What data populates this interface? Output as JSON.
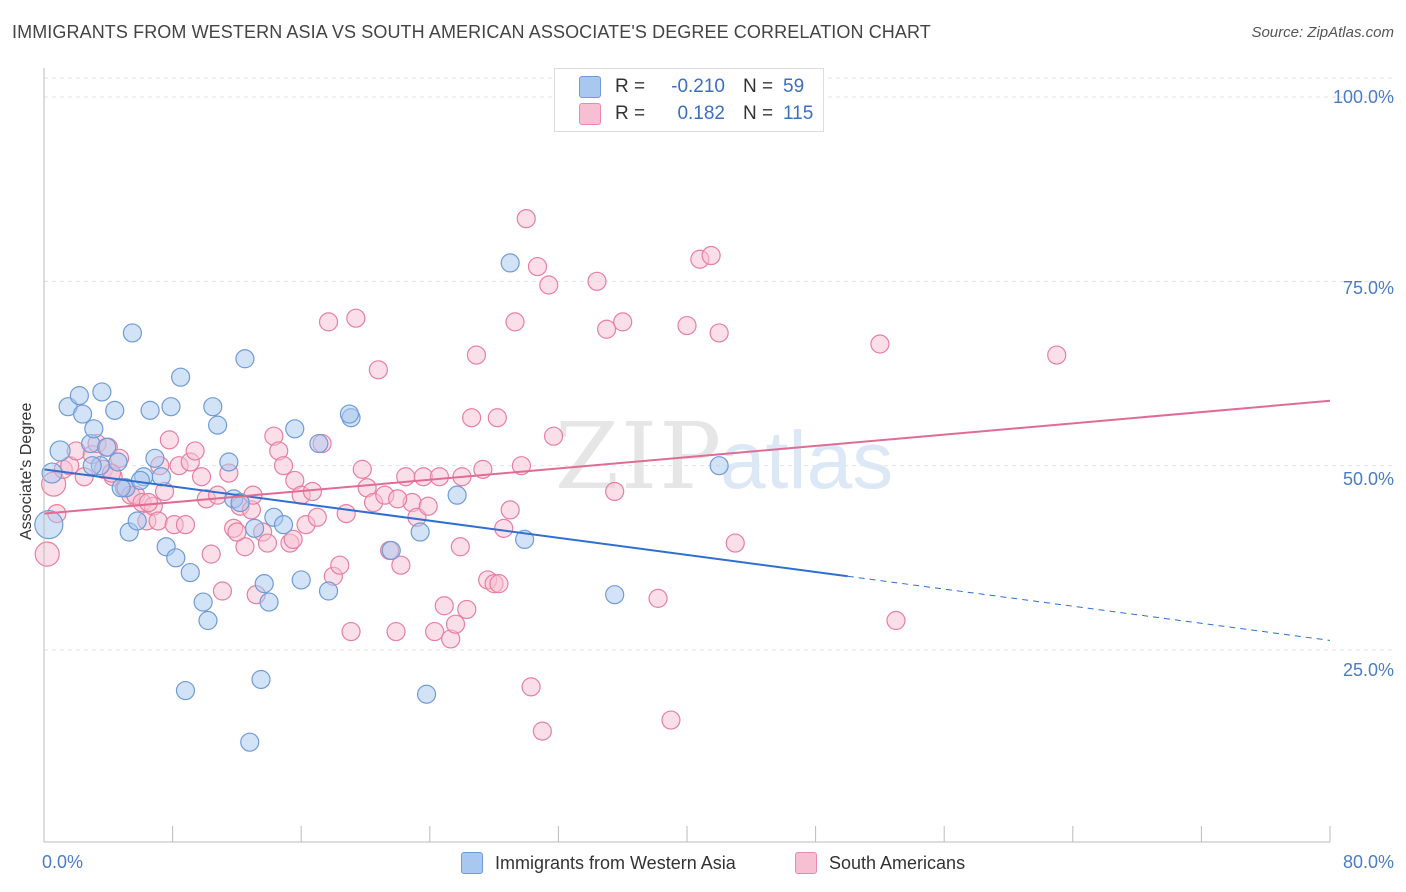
{
  "title": "IMMIGRANTS FROM WESTERN ASIA VS SOUTH AMERICAN ASSOCIATE'S DEGREE CORRELATION CHART",
  "source": "Source: ZipAtlas.com",
  "watermark": "ZIPatlas",
  "legend": {
    "rows": [
      {
        "r_label": "R =",
        "r_value": "-0.210",
        "n_label": "N =",
        "n_value": "59",
        "color": "#a8c8f0",
        "border": "#6f9bd8"
      },
      {
        "r_label": "R =",
        "r_value": "0.182",
        "n_label": "N =",
        "n_value": "115",
        "color": "#f7c0d2",
        "border": "#e88aa8"
      }
    ]
  },
  "bottom_legend": {
    "series_a": "Immigrants from Western Asia",
    "series_b": "South Americans"
  },
  "chart_data": {
    "type": "scatter",
    "title": "IMMIGRANTS FROM WESTERN ASIA VS SOUTH AMERICAN ASSOCIATE'S DEGREE CORRELATION CHART",
    "xlabel": "",
    "ylabel": "Associate's Degree",
    "xlim": [
      0,
      80
    ],
    "ylim": [
      0,
      105
    ],
    "x_tick_labels": [
      "0.0%",
      "80.0%"
    ],
    "y_ticks": [
      25,
      50,
      75,
      100
    ],
    "y_tick_labels": [
      "25.0%",
      "50.0%",
      "75.0%",
      "100.0%"
    ],
    "grid": true,
    "series": [
      {
        "name": "Immigrants from Western Asia",
        "color": "#6f9bd8",
        "fill": "#a8c8f0",
        "trend": {
          "x0": 0,
          "y0": 49.5,
          "x1": 50,
          "y1": 35.0,
          "dash_to_x": 80,
          "dash_to_y": 26.3
        },
        "points": [
          [
            0.3,
            42,
            14
          ],
          [
            0.5,
            49,
            10
          ],
          [
            1.0,
            52,
            10
          ],
          [
            1.5,
            58,
            9
          ],
          [
            2.2,
            59.5,
            9
          ],
          [
            2.4,
            57,
            9
          ],
          [
            2.9,
            53,
            9
          ],
          [
            3.1,
            55,
            9
          ],
          [
            3.5,
            50,
            9
          ],
          [
            3.6,
            60,
            9
          ],
          [
            3.9,
            52.5,
            9
          ],
          [
            4.4,
            57.5,
            9
          ],
          [
            4.6,
            50.5,
            9
          ],
          [
            5.1,
            47,
            9
          ],
          [
            5.3,
            41,
            9
          ],
          [
            5.5,
            68,
            9
          ],
          [
            5.8,
            42.5,
            9
          ],
          [
            6.2,
            48.5,
            9
          ],
          [
            6.6,
            57.5,
            9
          ],
          [
            6.9,
            51,
            9
          ],
          [
            7.3,
            48.5,
            9
          ],
          [
            7.6,
            39,
            9
          ],
          [
            7.9,
            58,
            9
          ],
          [
            8.2,
            37.5,
            9
          ],
          [
            8.5,
            62,
            9
          ],
          [
            8.8,
            19.5,
            9
          ],
          [
            9.1,
            35.5,
            9
          ],
          [
            9.9,
            31.5,
            9
          ],
          [
            10.2,
            29,
            9
          ],
          [
            10.5,
            58,
            9
          ],
          [
            10.8,
            55.5,
            9
          ],
          [
            11.5,
            50.5,
            9
          ],
          [
            11.8,
            45.5,
            9
          ],
          [
            12.2,
            45,
            9
          ],
          [
            12.5,
            64.5,
            9
          ],
          [
            12.8,
            12.5,
            9
          ],
          [
            13.1,
            41.5,
            9
          ],
          [
            13.5,
            21,
            9
          ],
          [
            13.7,
            34,
            9
          ],
          [
            14.0,
            31.5,
            9
          ],
          [
            14.3,
            43,
            9
          ],
          [
            14.9,
            42,
            9
          ],
          [
            15.6,
            55,
            9
          ],
          [
            16.0,
            34.5,
            9
          ],
          [
            17.1,
            53,
            9
          ],
          [
            17.7,
            33,
            9
          ],
          [
            19.1,
            56.5,
            9
          ],
          [
            21.6,
            38.5,
            9
          ],
          [
            23.4,
            41,
            9
          ],
          [
            23.8,
            19,
            9
          ],
          [
            25.7,
            46,
            9
          ],
          [
            29.0,
            77.5,
            9
          ],
          [
            29.9,
            40,
            9
          ],
          [
            35.5,
            32.5,
            9
          ],
          [
            42.0,
            50,
            9
          ],
          [
            19.0,
            57,
            9
          ],
          [
            6.0,
            48,
            9
          ],
          [
            4.8,
            47,
            9
          ],
          [
            3.0,
            50,
            9
          ]
        ]
      },
      {
        "name": "South Americans",
        "color": "#e87fa0",
        "fill": "#f7c0d2",
        "trend": {
          "x0": 0,
          "y0": 43.5,
          "x1": 80,
          "y1": 58.8
        },
        "points": [
          [
            0.2,
            38,
            12
          ],
          [
            0.6,
            47.5,
            12
          ],
          [
            0.8,
            43.5,
            9
          ],
          [
            1.2,
            49.5,
            9
          ],
          [
            1.6,
            50,
            9
          ],
          [
            2.0,
            52,
            9
          ],
          [
            2.5,
            48.5,
            9
          ],
          [
            3.0,
            51.5,
            9
          ],
          [
            3.3,
            53,
            9
          ],
          [
            3.7,
            49.5,
            9
          ],
          [
            4.0,
            52.5,
            9
          ],
          [
            4.3,
            48.5,
            9
          ],
          [
            4.7,
            51,
            9
          ],
          [
            5.0,
            47,
            9
          ],
          [
            5.4,
            46,
            9
          ],
          [
            5.7,
            46,
            9
          ],
          [
            6.1,
            45,
            9
          ],
          [
            6.4,
            42.5,
            9
          ],
          [
            6.8,
            44.5,
            9
          ],
          [
            7.1,
            42.5,
            9
          ],
          [
            7.5,
            46.5,
            9
          ],
          [
            7.8,
            53.5,
            9
          ],
          [
            8.1,
            42,
            9
          ],
          [
            8.4,
            50,
            9
          ],
          [
            8.8,
            42,
            9
          ],
          [
            9.1,
            50.5,
            9
          ],
          [
            9.4,
            52,
            9
          ],
          [
            9.8,
            48.5,
            9
          ],
          [
            10.1,
            45.5,
            9
          ],
          [
            10.4,
            38,
            9
          ],
          [
            10.8,
            46,
            9
          ],
          [
            11.1,
            33,
            9
          ],
          [
            11.5,
            49,
            9
          ],
          [
            11.8,
            41.5,
            9
          ],
          [
            12.2,
            44.5,
            9
          ],
          [
            12.5,
            39,
            9
          ],
          [
            12.9,
            44,
            9
          ],
          [
            13.2,
            32.5,
            9
          ],
          [
            13.6,
            41,
            9
          ],
          [
            13.9,
            39.5,
            9
          ],
          [
            14.3,
            54,
            9
          ],
          [
            14.6,
            52,
            9
          ],
          [
            14.9,
            50,
            9
          ],
          [
            15.3,
            39.5,
            9
          ],
          [
            15.6,
            48,
            9
          ],
          [
            16.0,
            46,
            9
          ],
          [
            16.3,
            42,
            9
          ],
          [
            16.7,
            46.5,
            9
          ],
          [
            17.0,
            43,
            9
          ],
          [
            17.3,
            53,
            9
          ],
          [
            17.7,
            69.5,
            9
          ],
          [
            18.0,
            35,
            9
          ],
          [
            18.4,
            36.5,
            9
          ],
          [
            18.8,
            43.5,
            9
          ],
          [
            19.1,
            27.5,
            9
          ],
          [
            19.4,
            70,
            9
          ],
          [
            19.8,
            49.5,
            9
          ],
          [
            20.1,
            47,
            9
          ],
          [
            20.5,
            45,
            9
          ],
          [
            20.8,
            63,
            9
          ],
          [
            21.2,
            46,
            9
          ],
          [
            21.5,
            38.5,
            9
          ],
          [
            21.9,
            27.5,
            9
          ],
          [
            22.2,
            36.5,
            9
          ],
          [
            22.5,
            48.5,
            9
          ],
          [
            22.9,
            45,
            9
          ],
          [
            23.2,
            43,
            9
          ],
          [
            23.6,
            48.5,
            9
          ],
          [
            23.9,
            44.5,
            9
          ],
          [
            24.3,
            27.5,
            9
          ],
          [
            24.6,
            48.5,
            9
          ],
          [
            24.9,
            31,
            9
          ],
          [
            25.3,
            26.5,
            9
          ],
          [
            25.6,
            28.5,
            9
          ],
          [
            25.9,
            39,
            9
          ],
          [
            26.3,
            30.5,
            9
          ],
          [
            26.6,
            56.5,
            9
          ],
          [
            26.9,
            65,
            9
          ],
          [
            27.3,
            49.5,
            9
          ],
          [
            27.6,
            34.5,
            9
          ],
          [
            28.0,
            34,
            9
          ],
          [
            28.3,
            34,
            9
          ],
          [
            28.6,
            41.5,
            9
          ],
          [
            29.0,
            44,
            9
          ],
          [
            29.3,
            69.5,
            9
          ],
          [
            29.7,
            50,
            9
          ],
          [
            30.0,
            83.5,
            9
          ],
          [
            30.3,
            20,
            9
          ],
          [
            30.7,
            77,
            9
          ],
          [
            31.0,
            14,
            9
          ],
          [
            31.4,
            74.5,
            9
          ],
          [
            31.7,
            54,
            9
          ],
          [
            34.4,
            75,
            9
          ],
          [
            35.0,
            68.5,
            9
          ],
          [
            35.5,
            46.5,
            9
          ],
          [
            36.0,
            69.5,
            9
          ],
          [
            38.2,
            32,
            9
          ],
          [
            39.0,
            15.5,
            9
          ],
          [
            40.0,
            69,
            9
          ],
          [
            40.8,
            78,
            9
          ],
          [
            41.5,
            78.5,
            9
          ],
          [
            42.0,
            68,
            9
          ],
          [
            43.0,
            39.5,
            9
          ],
          [
            52.0,
            66.5,
            9
          ],
          [
            53.0,
            29,
            9
          ],
          [
            63.0,
            65,
            9
          ],
          [
            28.2,
            56.5,
            9
          ],
          [
            26.0,
            48.5,
            9
          ],
          [
            22.0,
            45.5,
            9
          ],
          [
            15.5,
            40,
            9
          ],
          [
            13.0,
            46,
            9
          ],
          [
            12.0,
            41,
            9
          ],
          [
            7.2,
            50,
            9
          ],
          [
            6.5,
            45,
            9
          ],
          [
            4.2,
            49,
            9
          ]
        ]
      }
    ]
  }
}
